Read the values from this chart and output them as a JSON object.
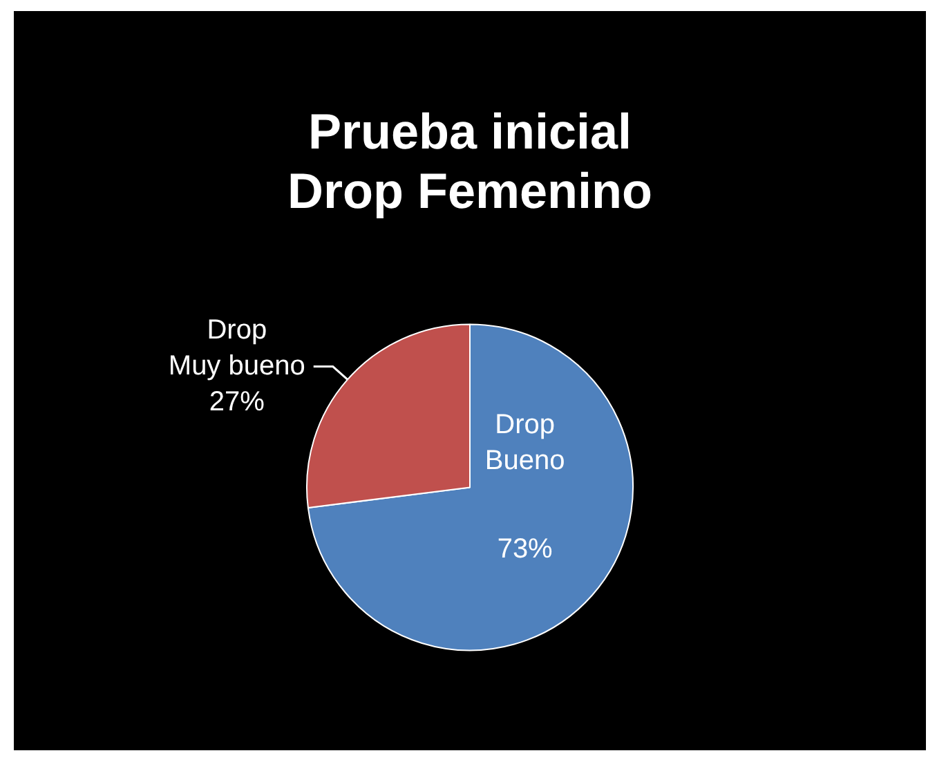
{
  "chart_data": {
    "type": "pie",
    "title": "Prueba inicial\nDrop Femenino",
    "categories": [
      "Drop\nBueno",
      "Drop\nMuy bueno"
    ],
    "values": [
      73,
      27
    ],
    "colors": [
      "#4f81bd",
      "#c0504d"
    ],
    "value_labels": [
      "73%",
      "27%"
    ],
    "legend": false
  }
}
